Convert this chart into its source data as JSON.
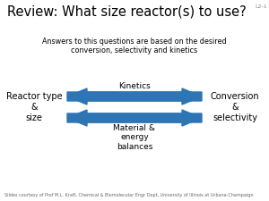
{
  "title": "Review: What size reactor(s) to use?",
  "slide_id": "L2-1",
  "subtitle": "Answers to this questions are based on the desired\nconversion, selectivity and kinetics",
  "left_label": "Reactor type\n&\nsize",
  "right_label": "Conversion\n&\nselectivity",
  "top_arrow_label": "Kinetics",
  "bottom_arrow_label": "Material &\nenergy\nbalances",
  "footer": "Slides courtesy of Prof M.L. Kraft, Chemical & Biomolecular Engr Dept, University of Illinois at Urbana-Champaign",
  "background_color": "#ffffff",
  "arrow_color": "#2E75B6",
  "title_fontsize": 10.5,
  "subtitle_fontsize": 5.8,
  "label_fontsize": 7,
  "arrow_label_fontsize": 6.5,
  "footer_fontsize": 3.5,
  "slide_id_fontsize": 4.5
}
